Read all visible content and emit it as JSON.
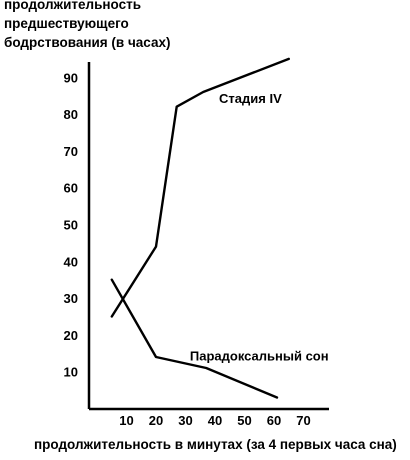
{
  "chart_data": {
    "type": "line",
    "ylabel_lines": [
      "продолжительность",
      "предшествующего",
      "бодрствования (в часах)"
    ],
    "xlabel": "продолжительность в минутах (за 4 первых часа сна)",
    "x_ticks": [
      "10",
      "20",
      "30",
      "40",
      "50",
      "60",
      "70"
    ],
    "y_ticks": [
      "10",
      "20",
      "30",
      "40",
      "50",
      "60",
      "70",
      "80",
      "90"
    ],
    "xlim": [
      0,
      75
    ],
    "ylim": [
      0,
      95
    ],
    "grid": false,
    "legend": "none",
    "series": [
      {
        "name": "Стадия IV",
        "points": [
          {
            "x": 5,
            "y": 25
          },
          {
            "x": 20,
            "y": 44
          },
          {
            "x": 27,
            "y": 82
          },
          {
            "x": 36,
            "y": 86
          },
          {
            "x": 65,
            "y": 95
          }
        ],
        "label_at": {
          "x": 52,
          "y": 83
        }
      },
      {
        "name": "Парадоксальный сон",
        "points": [
          {
            "x": 5,
            "y": 35
          },
          {
            "x": 20,
            "y": 14
          },
          {
            "x": 37,
            "y": 11
          },
          {
            "x": 61,
            "y": 3
          }
        ],
        "label_at": {
          "x": 55,
          "y": 13
        }
      }
    ]
  }
}
